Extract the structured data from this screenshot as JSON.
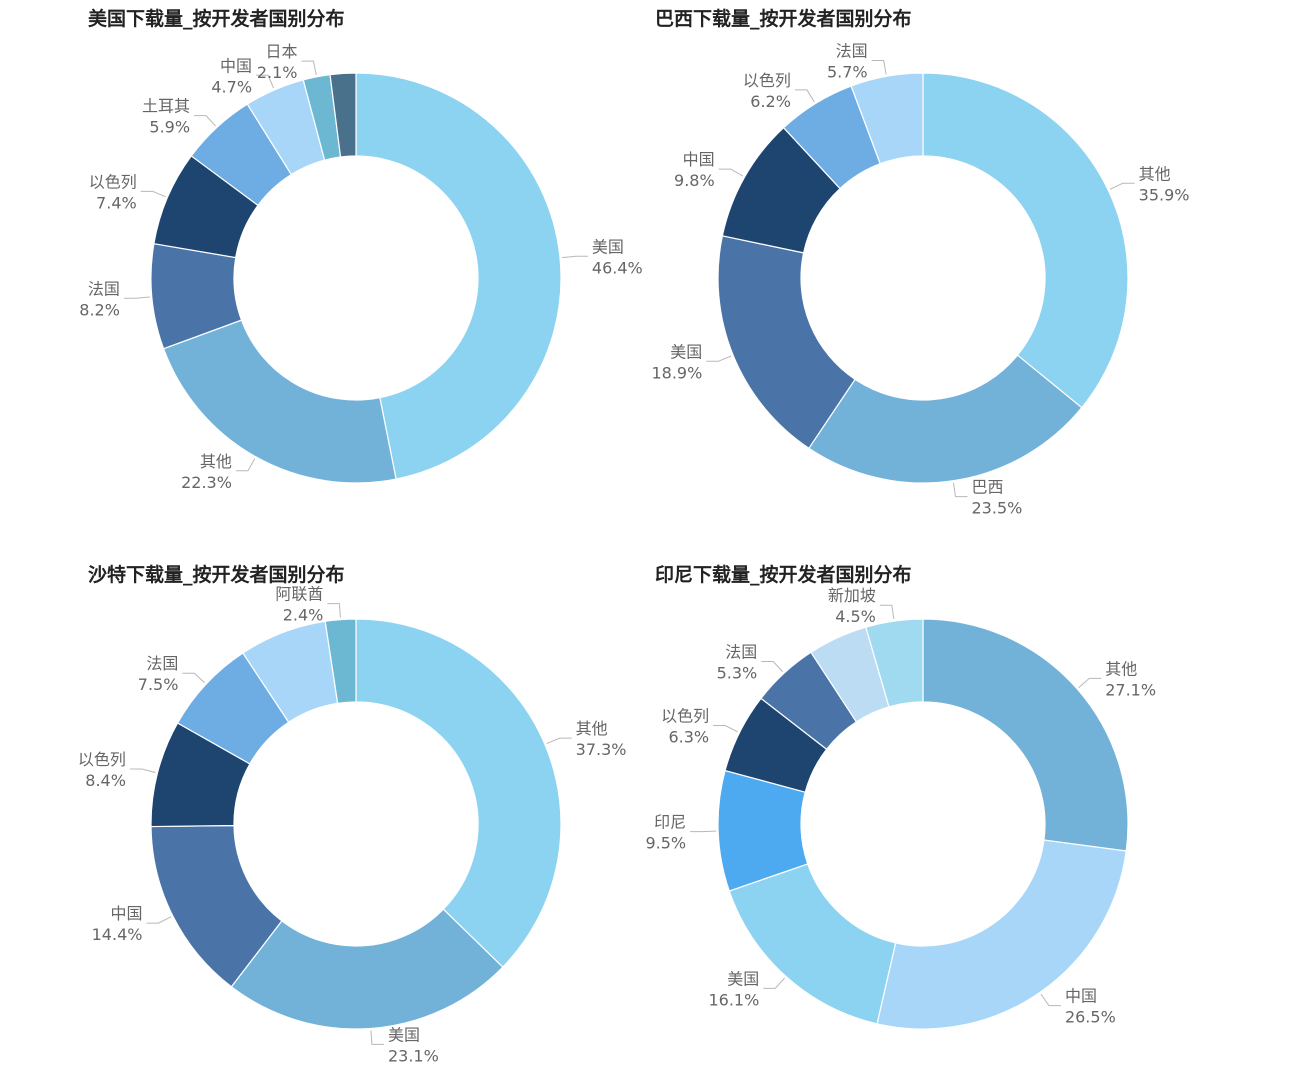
{
  "chart_data": [
    {
      "type": "pie",
      "title": "美国下载量_按开发者国别分布",
      "slices": [
        {
          "label": "美国",
          "value": 46.4,
          "value_label": "46.4%",
          "color": "#8bd3f0"
        },
        {
          "label": "其他",
          "value": 22.3,
          "value_label": "22.3%",
          "color": "#72b2d8"
        },
        {
          "label": "法国",
          "value": 8.2,
          "value_label": "8.2%",
          "color": "#4a74a8"
        },
        {
          "label": "以色列",
          "value": 7.4,
          "value_label": "7.4%",
          "color": "#1d4570"
        },
        {
          "label": "土耳其",
          "value": 5.9,
          "value_label": "5.9%",
          "color": "#6eace4"
        },
        {
          "label": "中国",
          "value": 4.7,
          "value_label": "4.7%",
          "color": "#a8d6f8"
        },
        {
          "label": "日本",
          "value": 2.1,
          "value_label": "2.1%",
          "color": "#6cb8d2"
        },
        {
          "label": "",
          "value": 2.0,
          "value_label": "",
          "color": "#4a718c"
        }
      ]
    },
    {
      "type": "pie",
      "title": "巴西下载量_按开发者国别分布",
      "slices": [
        {
          "label": "其他",
          "value": 35.9,
          "value_label": "35.9%",
          "color": "#8bd3f0"
        },
        {
          "label": "巴西",
          "value": 23.5,
          "value_label": "23.5%",
          "color": "#72b2d8"
        },
        {
          "label": "美国",
          "value": 18.9,
          "value_label": "18.9%",
          "color": "#4a74a8"
        },
        {
          "label": "中国",
          "value": 9.8,
          "value_label": "9.8%",
          "color": "#1d4570"
        },
        {
          "label": "以色列",
          "value": 6.2,
          "value_label": "6.2%",
          "color": "#6eace4"
        },
        {
          "label": "法国",
          "value": 5.7,
          "value_label": "5.7%",
          "color": "#a8d6f8"
        }
      ]
    },
    {
      "type": "pie",
      "title": "沙特下载量_按开发者国别分布",
      "slices": [
        {
          "label": "其他",
          "value": 37.3,
          "value_label": "37.3%",
          "color": "#8bd3f0"
        },
        {
          "label": "美国",
          "value": 23.1,
          "value_label": "23.1%",
          "color": "#72b2d8"
        },
        {
          "label": "中国",
          "value": 14.4,
          "value_label": "14.4%",
          "color": "#4a74a8"
        },
        {
          "label": "以色列",
          "value": 8.4,
          "value_label": "8.4%",
          "color": "#1d4570"
        },
        {
          "label": "法国",
          "value": 7.5,
          "value_label": "7.5%",
          "color": "#6eace4"
        },
        {
          "label": "",
          "value": 6.9,
          "value_label": "",
          "color": "#a8d6f8"
        },
        {
          "label": "阿联酋",
          "value": 2.4,
          "value_label": "2.4%",
          "color": "#6cb8d2"
        }
      ]
    },
    {
      "type": "pie",
      "title": "印尼下载量_按开发者国别分布",
      "slices": [
        {
          "label": "其他",
          "value": 27.1,
          "value_label": "27.1%",
          "color": "#72b2d8"
        },
        {
          "label": "中国",
          "value": 26.5,
          "value_label": "26.5%",
          "color": "#a8d6f8"
        },
        {
          "label": "美国",
          "value": 16.1,
          "value_label": "16.1%",
          "color": "#8bd3f0"
        },
        {
          "label": "印尼",
          "value": 9.5,
          "value_label": "9.5%",
          "color": "#4eaaf0"
        },
        {
          "label": "以色列",
          "value": 6.3,
          "value_label": "6.3%",
          "color": "#1d4570"
        },
        {
          "label": "法国",
          "value": 5.3,
          "value_label": "5.3%",
          "color": "#4a74a8"
        },
        {
          "label": "",
          "value": 4.7,
          "value_label": "",
          "color": "#bcdcf4"
        },
        {
          "label": "新加坡",
          "value": 4.5,
          "value_label": "4.5%",
          "color": "#9fdaf0"
        }
      ]
    }
  ]
}
